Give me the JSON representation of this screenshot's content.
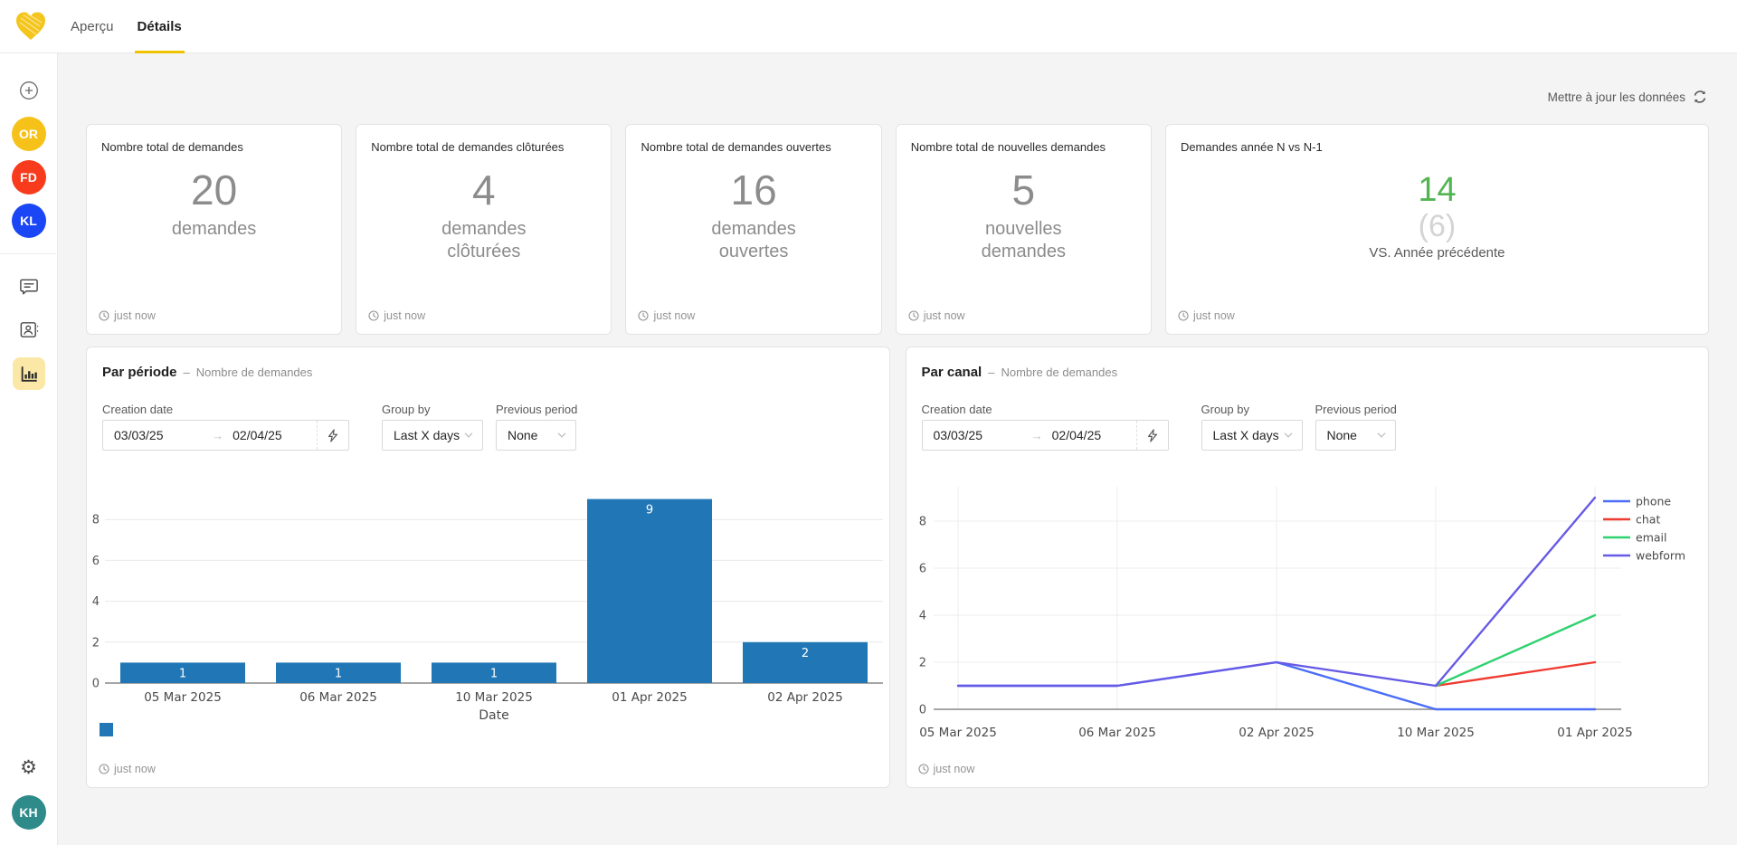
{
  "header": {
    "accent": "#f0c300",
    "tabs": [
      {
        "label": "Aperçu",
        "active": false
      },
      {
        "label": "Détails",
        "active": true
      }
    ]
  },
  "sidebar": {
    "active_bg": "#fbe8a6",
    "avatars": [
      {
        "initials": "OR",
        "color": "#f6c21a"
      },
      {
        "initials": "FD",
        "color": "#f83b1d"
      },
      {
        "initials": "KL",
        "color": "#1b46f5"
      }
    ],
    "bottom_avatar": {
      "initials": "KH",
      "color": "#2e8b8a"
    }
  },
  "toolbar": {
    "refresh_label": "Mettre à jour les données"
  },
  "cards": [
    {
      "title": "Nombre total de demandes",
      "value": "20",
      "label": "demandes",
      "updated": "just now"
    },
    {
      "title": "Nombre total de demandes clôturées",
      "value": "4",
      "label": "demandes clôturées",
      "updated": "just now"
    },
    {
      "title": "Nombre total de demandes ouvertes",
      "value": "16",
      "label": "demandes ouvertes",
      "updated": "just now"
    },
    {
      "title": "Nombre total de nouvelles demandes",
      "value": "5",
      "label": "nouvelles demandes",
      "updated": "just now"
    },
    {
      "title": "Demandes année N vs N-1",
      "value": "14",
      "value_color": "#53b552",
      "previous": "(6)",
      "previous_color": "#d4d4d4",
      "label": "VS. Année précédente",
      "updated": "just now"
    }
  ],
  "panels": [
    {
      "title": "Par période",
      "separator": "–",
      "subtitle": "Nombre de demandes",
      "filters": {
        "creation_date_label": "Creation date",
        "date_start": "03/03/25",
        "date_end": "02/04/25",
        "date_arrow": "→",
        "group_by_label": "Group by",
        "group_by_value": "Last X days",
        "previous_period_label": "Previous period",
        "previous_period_value": "None"
      },
      "updated": "just now"
    },
    {
      "title": "Par canal",
      "separator": "–",
      "subtitle": "Nombre de demandes",
      "filters": {
        "creation_date_label": "Creation date",
        "date_start": "03/03/25",
        "date_end": "02/04/25",
        "date_arrow": "→",
        "group_by_label": "Group by",
        "group_by_value": "Last X days",
        "previous_period_label": "Previous period",
        "previous_period_value": "None"
      },
      "updated": "just now"
    }
  ],
  "chart_data": [
    {
      "type": "bar",
      "title": "Par période – Nombre de demandes",
      "categories": [
        "05 Mar 2025",
        "06 Mar 2025",
        "10 Mar 2025",
        "01 Apr 2025",
        "02 Apr 2025"
      ],
      "values": [
        1,
        1,
        1,
        9,
        2
      ],
      "xlabel": "Date",
      "ylabel": "",
      "yticks": [
        0,
        2,
        4,
        6,
        8
      ],
      "ylim": [
        0,
        9.3
      ],
      "bar_color": "#2177b5",
      "grid": "horizontal",
      "value_labels": true,
      "legend_swatch": true
    },
    {
      "type": "line",
      "title": "Par canal – Nombre de demandes",
      "x": [
        "05 Mar 2025",
        "06 Mar 2025",
        "02 Apr 2025",
        "10 Mar 2025",
        "01 Apr 2025"
      ],
      "series": [
        {
          "name": "phone",
          "color": "#4a6cf7",
          "values": [
            1,
            1,
            2,
            0,
            0
          ]
        },
        {
          "name": "chat",
          "color": "#ee3c32",
          "values": [
            null,
            null,
            null,
            1,
            2
          ]
        },
        {
          "name": "email",
          "color": "#2ed26e",
          "values": [
            null,
            null,
            null,
            1,
            4
          ]
        },
        {
          "name": "webform",
          "color": "#665ae6",
          "values": [
            1,
            1,
            2,
            1,
            9
          ]
        }
      ],
      "yticks": [
        0,
        2,
        4,
        6,
        8
      ],
      "ylim": [
        0,
        9.3
      ],
      "grid": "both",
      "legend_position": "right-top"
    }
  ]
}
